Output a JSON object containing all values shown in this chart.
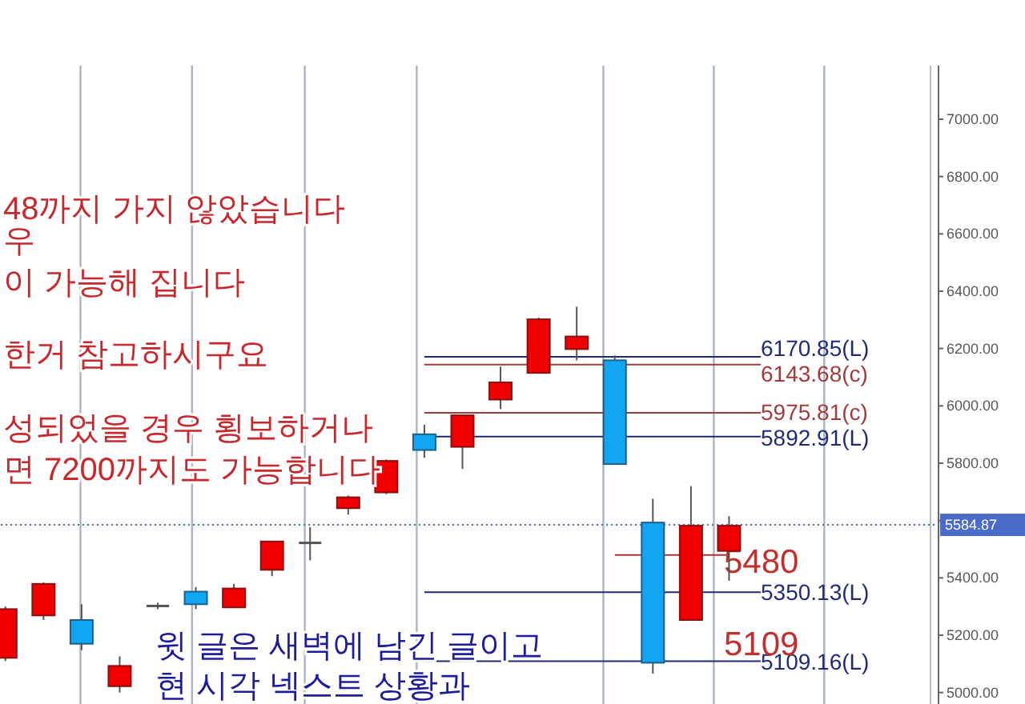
{
  "chart_data": {
    "type": "candlestick",
    "categories": [
      null,
      null,
      null,
      null,
      null,
      null,
      null,
      null,
      null,
      null,
      null,
      null,
      null,
      null,
      null,
      null,
      null,
      null,
      null,
      null,
      null,
      null,
      null,
      null,
      null
    ],
    "ohlc": [
      [
        5121,
        5300,
        5110,
        5291
      ],
      [
        5269,
        5384,
        5253,
        5379
      ],
      [
        5253,
        5308,
        5148,
        5170
      ],
      [
        5022,
        5126,
        5000,
        5093
      ],
      [
        5302,
        5313,
        5291,
        5302
      ],
      [
        5352,
        5368,
        5291,
        5308
      ],
      [
        5297,
        5379,
        5297,
        5363
      ],
      [
        5428,
        5527,
        5406,
        5527
      ],
      [
        5522,
        5577,
        5461,
        5522
      ],
      [
        5643,
        5687,
        5621,
        5681
      ],
      [
        5698,
        5813,
        5692,
        5808
      ],
      [
        5901,
        5934,
        5819,
        5846
      ],
      [
        5857,
        5967,
        5780,
        5967
      ],
      [
        6022,
        6137,
        5989,
        6082
      ],
      [
        6115,
        6308,
        6115,
        6302
      ],
      [
        6198,
        6346,
        6159,
        6242
      ],
      [
        6159,
        6176,
        5797,
        5797
      ],
      [
        5593,
        5676,
        5066,
        5104
      ],
      [
        5253,
        5720,
        5253,
        5582
      ],
      [
        5494,
        5615,
        5390,
        5582
      ],
      null,
      null,
      null,
      null,
      null
    ],
    "ylim": [
      4960,
      7187
    ],
    "yticks": [
      {
        "value": 5000,
        "label": "5000.00"
      },
      {
        "value": 5200,
        "label": "5200.00"
      },
      {
        "value": 5400,
        "label": "5400.00"
      },
      {
        "value": 5600,
        "label": null
      },
      {
        "value": 5800,
        "label": "5800.00"
      },
      {
        "value": 6000,
        "label": "6000.00"
      },
      {
        "value": 6200,
        "label": "6200.00"
      },
      {
        "value": 6400,
        "label": "6400.00"
      },
      {
        "value": 6600,
        "label": "6600.00"
      },
      {
        "value": 6800,
        "label": "6800.00"
      },
      {
        "value": 7000,
        "label": "7000.00"
      }
    ],
    "ref_lines": [
      {
        "axis": "y",
        "value": 6170.85,
        "label": "6170.85(L)",
        "color": "#1f2a7a"
      },
      {
        "axis": "y",
        "value": 6143.68,
        "label": "6143.68(c)",
        "color": "#a33a3a"
      },
      {
        "axis": "y",
        "value": 5975.81,
        "label": "5975.81(c)",
        "color": "#a33a3a"
      },
      {
        "axis": "y",
        "value": 5892.91,
        "label": "5892.91(L)",
        "color": "#1f2a7a"
      },
      {
        "axis": "y",
        "value": 5350.13,
        "label": "5350.13(L)",
        "color": "#1f2a7a"
      },
      {
        "axis": "y",
        "value": 5109.16,
        "label": "5109.16(L)",
        "color": "#1f2a7a"
      },
      {
        "axis": "y",
        "value": 5480,
        "label": "5480",
        "color": "#b03030"
      },
      {
        "axis": "y",
        "value": 5584.87,
        "label": "5584.87",
        "color": "#4a6cc8",
        "line_style": "dotted"
      }
    ],
    "annotations": [
      "48까지 가지 않았습니다",
      "우",
      "이 가능해 집니다",
      "한거 참고하시구요",
      "성되었을 경우 횡보하거나",
      "면 7200까지도 가능합니다",
      {
        "text": "5109",
        "y": 5109
      },
      "윗 글은 새벽에 남긴 글이고",
      "현 시각 넥스트 상황과"
    ]
  }
}
